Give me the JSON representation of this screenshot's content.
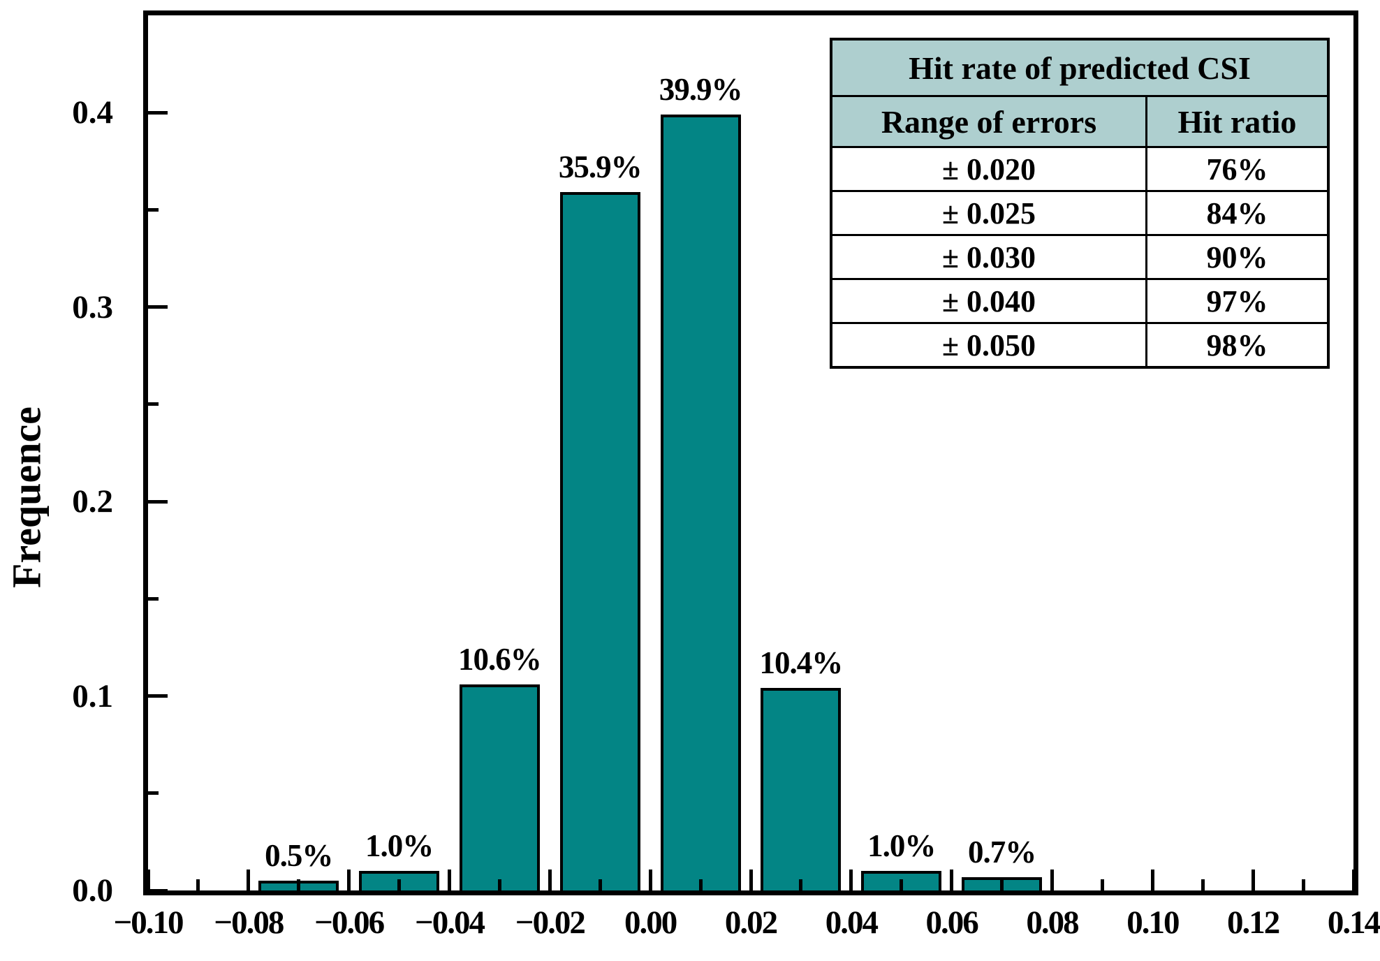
{
  "figure": {
    "background": "#ffffff"
  },
  "chart_data": {
    "type": "bar",
    "title": "",
    "xlabel": "",
    "ylabel": "Frequence",
    "xlim": [
      -0.1,
      0.14
    ],
    "ylim": [
      0,
      0.45
    ],
    "grid": false,
    "bar_color": "#038585",
    "bar_edge_color": "#000000",
    "bar_width": 0.016,
    "bars": [
      {
        "center": -0.07,
        "value": 0.005,
        "label": "0.5%"
      },
      {
        "center": -0.05,
        "value": 0.01,
        "label": "1.0%"
      },
      {
        "center": -0.03,
        "value": 0.106,
        "label": "10.6%"
      },
      {
        "center": -0.01,
        "value": 0.359,
        "label": "35.9%"
      },
      {
        "center": 0.01,
        "value": 0.399,
        "label": "39.9%"
      },
      {
        "center": 0.03,
        "value": 0.104,
        "label": "10.4%"
      },
      {
        "center": 0.05,
        "value": 0.01,
        "label": "1.0%"
      },
      {
        "center": 0.07,
        "value": 0.007,
        "label": "0.7%"
      }
    ],
    "x_ticks": [
      {
        "value": -0.1,
        "label": "−0.10"
      },
      {
        "value": -0.08,
        "label": "−0.08"
      },
      {
        "value": -0.06,
        "label": "−0.06"
      },
      {
        "value": -0.04,
        "label": "−0.04"
      },
      {
        "value": -0.02,
        "label": "−0.02"
      },
      {
        "value": 0.0,
        "label": "0.00"
      },
      {
        "value": 0.02,
        "label": "0.02"
      },
      {
        "value": 0.04,
        "label": "0.04"
      },
      {
        "value": 0.06,
        "label": "0.06"
      },
      {
        "value": 0.08,
        "label": "0.08"
      },
      {
        "value": 0.1,
        "label": "0.10"
      },
      {
        "value": 0.12,
        "label": "0.12"
      },
      {
        "value": 0.14,
        "label": "0.14"
      }
    ],
    "x_minor_ticks": [
      -0.09,
      -0.07,
      -0.05,
      -0.03,
      -0.01,
      0.01,
      0.03,
      0.05,
      0.07,
      0.09,
      0.11,
      0.13
    ],
    "y_ticks": [
      {
        "value": 0.0,
        "label": "0.0"
      },
      {
        "value": 0.1,
        "label": "0.1"
      },
      {
        "value": 0.2,
        "label": "0.2"
      },
      {
        "value": 0.3,
        "label": "0.3"
      },
      {
        "value": 0.4,
        "label": "0.4"
      }
    ],
    "y_minor_ticks": [
      0.05,
      0.15,
      0.25,
      0.35
    ],
    "legend": null
  },
  "inset_table": {
    "title": "Hit rate of predicted CSI",
    "header_bg": "#aecfcf",
    "columns": [
      "Range of  errors",
      "Hit ratio"
    ],
    "rows": [
      {
        "range": "± 0.020",
        "ratio": "76%"
      },
      {
        "range": "± 0.025",
        "ratio": "84%"
      },
      {
        "range": "± 0.030",
        "ratio": "90%"
      },
      {
        "range": "± 0.040",
        "ratio": "97%"
      },
      {
        "range": "± 0.050",
        "ratio": "98%"
      }
    ]
  }
}
